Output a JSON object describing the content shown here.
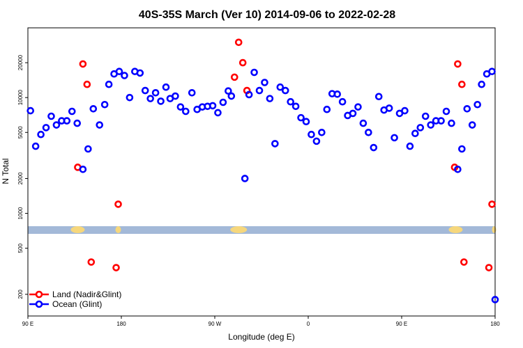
{
  "chart_data": {
    "type": "scatter",
    "title": "40S-35S March (Ver 10)   2014-09-06 to 2022-02-28",
    "xlabel": "Longitude (deg E)",
    "ylabel": "N Total",
    "x_ticks": [
      {
        "value": 0,
        "label": "90 E"
      },
      {
        "value": 90,
        "label": "180"
      },
      {
        "value": 180,
        "label": "90 W"
      },
      {
        "value": 270,
        "label": "0"
      },
      {
        "value": 360,
        "label": "90 E"
      },
      {
        "value": 450,
        "label": "180"
      }
    ],
    "y_ticks": [
      200,
      500,
      1000,
      2000,
      5000,
      10000,
      20000
    ],
    "xlim": [
      0,
      450
    ],
    "ylim_log": [
      130,
      40000
    ],
    "y_scale": "log",
    "map_band": {
      "color": "#a3b9d8",
      "land_color": "#f6d77c"
    },
    "legend_position": "bottom-left",
    "series": [
      {
        "name": "Land (Nadir&Glint)",
        "color": "#ff0000",
        "points": [
          [
            48,
            2500
          ],
          [
            53,
            19500
          ],
          [
            57,
            13000
          ],
          [
            61,
            380
          ],
          [
            85,
            340
          ],
          [
            87,
            1200
          ],
          [
            199,
            15000
          ],
          [
            203,
            30000
          ],
          [
            207,
            20000
          ],
          [
            211,
            11500
          ],
          [
            411,
            2500
          ],
          [
            414,
            19500
          ],
          [
            418,
            13000
          ],
          [
            420,
            380
          ],
          [
            444,
            340
          ],
          [
            447,
            1200
          ]
        ]
      },
      {
        "name": "Ocean (Glint)",
        "color": "#0000ff",
        "points": [
          [
            2.5,
            7700
          ],
          [
            7.5,
            3800
          ],
          [
            12.5,
            4800
          ],
          [
            17.5,
            5500
          ],
          [
            22.5,
            6900
          ],
          [
            27.5,
            5800
          ],
          [
            32.5,
            6300
          ],
          [
            37.5,
            6300
          ],
          [
            42.5,
            7600
          ],
          [
            47.5,
            6000
          ],
          [
            53,
            2400
          ],
          [
            58,
            3600
          ],
          [
            63,
            8000
          ],
          [
            69,
            5800
          ],
          [
            74,
            8700
          ],
          [
            78,
            13000
          ],
          [
            83,
            16000
          ],
          [
            88,
            16800
          ],
          [
            93,
            15500
          ],
          [
            98,
            10000
          ],
          [
            103,
            16800
          ],
          [
            108,
            16300
          ],
          [
            113,
            11500
          ],
          [
            118,
            9800
          ],
          [
            123,
            11000
          ],
          [
            128,
            9300
          ],
          [
            133,
            12300
          ],
          [
            137,
            9800
          ],
          [
            142,
            10300
          ],
          [
            147,
            8300
          ],
          [
            152,
            7600
          ],
          [
            158,
            11000
          ],
          [
            163,
            7900
          ],
          [
            168,
            8300
          ],
          [
            173,
            8400
          ],
          [
            178,
            8500
          ],
          [
            183,
            7400
          ],
          [
            188,
            9100
          ],
          [
            193,
            11400
          ],
          [
            196,
            10300
          ],
          [
            209,
            2000
          ],
          [
            213,
            10600
          ],
          [
            218,
            16500
          ],
          [
            223,
            11500
          ],
          [
            228,
            13500
          ],
          [
            233,
            9800
          ],
          [
            238,
            4000
          ],
          [
            243,
            12300
          ],
          [
            248,
            11500
          ],
          [
            253,
            9200
          ],
          [
            258,
            8400
          ],
          [
            263,
            6700
          ],
          [
            268,
            6200
          ],
          [
            273,
            4800
          ],
          [
            278,
            4200
          ],
          [
            283,
            5000
          ],
          [
            288,
            7900
          ],
          [
            293,
            10800
          ],
          [
            298,
            10700
          ],
          [
            303,
            9200
          ],
          [
            308,
            7000
          ],
          [
            313,
            7300
          ],
          [
            318,
            8300
          ],
          [
            323,
            6000
          ],
          [
            328,
            5000
          ],
          [
            333,
            3700
          ],
          [
            338,
            10200
          ],
          [
            343,
            7800
          ],
          [
            348,
            8100
          ],
          [
            353,
            4500
          ],
          [
            358,
            7300
          ],
          [
            363,
            7700
          ],
          [
            368,
            3800
          ],
          [
            373,
            4900
          ],
          [
            378,
            5500
          ],
          [
            383,
            6900
          ],
          [
            388,
            5800
          ],
          [
            393,
            6300
          ],
          [
            398,
            6300
          ],
          [
            403,
            7600
          ],
          [
            408,
            6000
          ],
          [
            414,
            2400
          ],
          [
            418,
            3600
          ],
          [
            423,
            8000
          ],
          [
            428,
            5800
          ],
          [
            433,
            8700
          ],
          [
            437,
            13000
          ],
          [
            442,
            16000
          ],
          [
            447,
            16800
          ],
          [
            450,
            180
          ]
        ]
      }
    ]
  }
}
